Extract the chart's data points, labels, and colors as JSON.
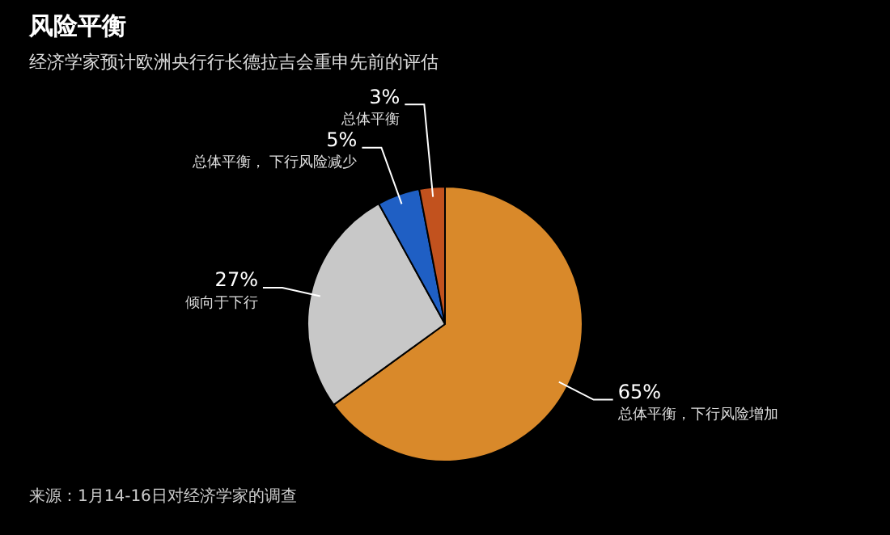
{
  "chart_data": {
    "type": "pie",
    "title": "风险平衡",
    "subtitle": "经济学家预计欧洲央行行长德拉吉会重申先前的评估",
    "categories": [
      "总体平衡，下行风险增加",
      "倾向于下行",
      "总体平衡， 下行风险减少",
      "总体平衡"
    ],
    "values": [
      65,
      27,
      5,
      3
    ],
    "colors": [
      "#d9892a",
      "#c8c8c8",
      "#1f5fc4",
      "#c2521e"
    ],
    "value_labels": [
      "65%",
      "27%",
      "5%",
      "3%"
    ],
    "annotations": [
      "来源：1月14-16日对经济学家的调查"
    ]
  }
}
